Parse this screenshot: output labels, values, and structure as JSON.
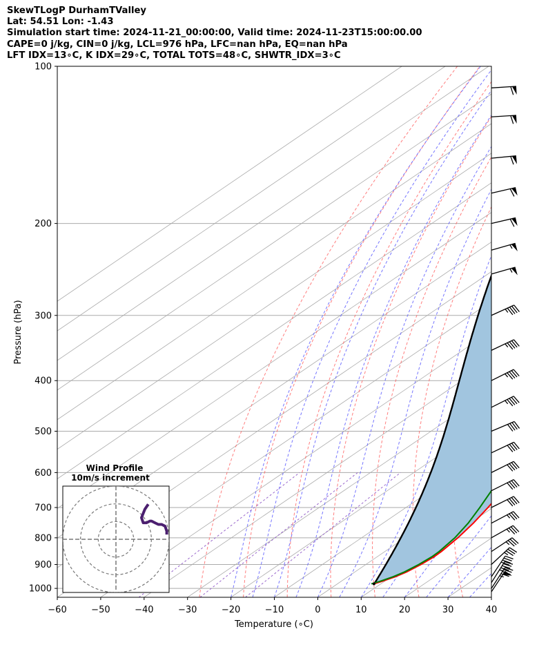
{
  "header": {
    "line1": "SkewTLogP DurhamTValley",
    "line2": "Lat: 54.51   Lon: -1.43",
    "line3": "Simulation start time: 2024-11-21_00:00:00, Valid time: 2024-11-23T15:00:00.00",
    "line4": "CAPE=0 j/kg, CIN=0 j/kg, LCL=976 hPa, LFC=nan hPa, EQ=nan hPa",
    "line5": "LFT IDX=13∘C, K IDX=29∘C, TOTAL TOTS=48∘C, SHWTR_IDX=3∘C"
  },
  "colors": {
    "temperature": "#ff0000",
    "dewpoint": "#008000",
    "parcel": "#000000",
    "shading": "#a1c5df",
    "dry_adiabat": "#ff6666",
    "moist_adiabat": "#6666ff",
    "mixing_ratio": "#9966cc",
    "isotherm": "#aaaaaa",
    "hodograph": "#4b1f6f"
  },
  "chart_data": {
    "type": "skewt",
    "xlabel": "Temperature (∘C)",
    "ylabel": "Pressure (hPa)",
    "xlim": [
      -60,
      40
    ],
    "ylim": [
      1040,
      100
    ],
    "x_ticks": [
      "−60",
      "−50",
      "−40",
      "−30",
      "−20",
      "−10",
      "0",
      "10",
      "20",
      "30",
      "40"
    ],
    "y_ticks": [
      "100",
      "200",
      "300",
      "400",
      "500",
      "600",
      "700",
      "800",
      "900",
      "1000"
    ],
    "y_tick_values": [
      100,
      200,
      300,
      400,
      500,
      600,
      700,
      800,
      900,
      1000
    ],
    "grid": true,
    "series": [
      {
        "key": "temperature",
        "points": [
          [
            980,
            8.4
          ],
          [
            970,
            9.4
          ],
          [
            950,
            10.9
          ],
          [
            930,
            11.9
          ],
          [
            900,
            12.7
          ],
          [
            870,
            13.1
          ],
          [
            850,
            13.0
          ],
          [
            800,
            12.2
          ],
          [
            750,
            10.8
          ],
          [
            700,
            8.9
          ],
          [
            650,
            6.6
          ],
          [
            600,
            3.9
          ],
          [
            550,
            1.3
          ],
          [
            500,
            -2.0
          ],
          [
            450,
            -6.2
          ],
          [
            400,
            -10.7
          ],
          [
            350,
            -16.2
          ],
          [
            300,
            -22.7
          ],
          [
            270,
            -26.4
          ],
          [
            250,
            -29.6
          ],
          [
            230,
            -33.7
          ],
          [
            210,
            -38.0
          ],
          [
            200,
            -40.3
          ],
          [
            190,
            -43.3
          ],
          [
            180,
            -46.2
          ],
          [
            170,
            -49.9
          ],
          [
            160,
            -51.8
          ],
          [
            150,
            -52.3
          ],
          [
            140,
            -53.6
          ],
          [
            130,
            -54.8
          ],
          [
            120,
            -58.3
          ],
          [
            110,
            -62.3
          ],
          [
            100,
            -65.9
          ]
        ]
      },
      {
        "key": "dewpoint",
        "points": [
          [
            980,
            7.8
          ],
          [
            970,
            8.9
          ],
          [
            950,
            10.4
          ],
          [
            930,
            11.4
          ],
          [
            900,
            12.2
          ],
          [
            870,
            12.6
          ],
          [
            850,
            12.5
          ],
          [
            800,
            11.5
          ],
          [
            750,
            9.6
          ],
          [
            700,
            7.0
          ],
          [
            650,
            4.0
          ],
          [
            600,
            1.1
          ],
          [
            550,
            -1.7
          ],
          [
            500,
            -4.9
          ],
          [
            450,
            -8.6
          ],
          [
            400,
            -13.1
          ],
          [
            350,
            -19.2
          ],
          [
            300,
            -25.7
          ],
          [
            270,
            -29.7
          ],
          [
            250,
            -33.1
          ],
          [
            230,
            -36.9
          ],
          [
            210,
            -41.6
          ],
          [
            200,
            -43.6
          ],
          [
            190,
            -46.7
          ],
          [
            180,
            -50.4
          ],
          [
            170,
            -53.3
          ],
          [
            160,
            -58.0
          ],
          [
            150,
            -62.5
          ],
          [
            140,
            -65.6
          ],
          [
            130,
            -65.7
          ],
          [
            120,
            -66.2
          ],
          [
            110,
            -67.2
          ],
          [
            100,
            -68.3
          ]
        ]
      }
    ],
    "parcel_surface": {
      "pressure": 980,
      "temperature": 8.4,
      "dewpoint": 7.8
    },
    "wind_barbs": [
      {
        "pressure": 1015,
        "u_ms": -14,
        "v_ms": -21
      },
      {
        "pressure": 1000,
        "u_ms": -13,
        "v_ms": -20
      },
      {
        "pressure": 975,
        "u_ms": -12,
        "v_ms": -19
      },
      {
        "pressure": 950,
        "u_ms": -12,
        "v_ms": -18
      },
      {
        "pressure": 900,
        "u_ms": -14,
        "v_ms": -13
      },
      {
        "pressure": 850,
        "u_ms": -15,
        "v_ms": -10
      },
      {
        "pressure": 800,
        "u_ms": -16,
        "v_ms": -9
      },
      {
        "pressure": 750,
        "u_ms": -17,
        "v_ms": -9
      },
      {
        "pressure": 700,
        "u_ms": -18,
        "v_ms": -9
      },
      {
        "pressure": 650,
        "u_ms": -18,
        "v_ms": -9
      },
      {
        "pressure": 600,
        "u_ms": -18,
        "v_ms": -9
      },
      {
        "pressure": 550,
        "u_ms": -19,
        "v_ms": -9
      },
      {
        "pressure": 500,
        "u_ms": -19,
        "v_ms": -8
      },
      {
        "pressure": 450,
        "u_ms": -20,
        "v_ms": -10
      },
      {
        "pressure": 400,
        "u_ms": -20,
        "v_ms": -10
      },
      {
        "pressure": 350,
        "u_ms": -21,
        "v_ms": -10
      },
      {
        "pressure": 300,
        "u_ms": -22,
        "v_ms": -10
      },
      {
        "pressure": 250,
        "u_ms": -28,
        "v_ms": -8
      },
      {
        "pressure": 225,
        "u_ms": -28,
        "v_ms": -8
      },
      {
        "pressure": 200,
        "u_ms": -30,
        "v_ms": -7
      },
      {
        "pressure": 175,
        "u_ms": -30,
        "v_ms": -7
      },
      {
        "pressure": 150,
        "u_ms": -31,
        "v_ms": -3
      },
      {
        "pressure": 125,
        "u_ms": -32,
        "v_ms": -2
      },
      {
        "pressure": 110,
        "u_ms": -31,
        "v_ms": -2
      }
    ],
    "hodograph": {
      "title": "Wind Profile",
      "subtitle": "10m/s increment",
      "range_ms": 30,
      "rings_ms": [
        10,
        20,
        30
      ],
      "trace": [
        [
          -20,
          -20
        ],
        [
          -18,
          -17
        ],
        [
          -16,
          -12
        ],
        [
          -17,
          -9
        ],
        [
          -19,
          -9
        ],
        [
          -21,
          -10
        ],
        [
          -22,
          -10
        ],
        [
          -24,
          -9
        ],
        [
          -26,
          -8
        ],
        [
          -28,
          -8
        ],
        [
          -30,
          -7
        ],
        [
          -31,
          -4
        ],
        [
          -31,
          -2
        ]
      ]
    }
  }
}
